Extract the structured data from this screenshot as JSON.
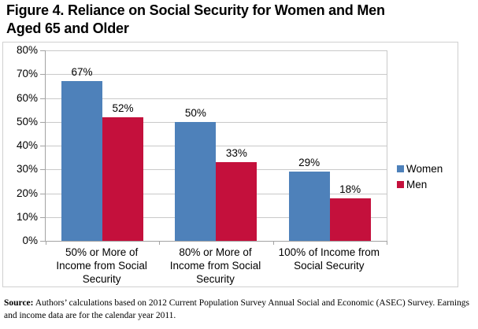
{
  "title": {
    "line1": "Figure 4. Reliance on Social Security for Women and Men",
    "line2": "Aged 65 and Older"
  },
  "chart_data": {
    "type": "bar",
    "title": "Figure 4. Reliance on Social Security for Women and Men Aged 65 and Older",
    "categories": [
      "50% or More of Income from Social Security",
      "80% or More of Income from Social Security",
      "100% of Income from Social Security"
    ],
    "series": [
      {
        "name": "Women",
        "color": "#4E81BA",
        "values": [
          67,
          50,
          29
        ]
      },
      {
        "name": "Men",
        "color": "#C4103C",
        "values": [
          52,
          33,
          18
        ]
      }
    ],
    "data_labels": [
      [
        "67%",
        "50%",
        "29%"
      ],
      [
        "52%",
        "33%",
        "18%"
      ]
    ],
    "xlabel": "",
    "ylabel": "",
    "ylim": [
      0,
      80
    ],
    "ytick_step": 10,
    "ytick_labels": [
      "0%",
      "10%",
      "20%",
      "30%",
      "40%",
      "50%",
      "60%",
      "70%",
      "80%"
    ],
    "grid": true,
    "legend_position": "right"
  },
  "colors": {
    "women": "#4E81BA",
    "men": "#C4103C",
    "gridline": "#C9C9C9",
    "axis": "#A3A3A3",
    "frame_border": "#D0D0D0"
  },
  "source": {
    "prefix": "Source:",
    "text": " Authors’ calculations based on 2012 Current Population Survey Annual Social and Economic (ASEC) Survey. Earnings and income data are for the calendar year 2011."
  }
}
